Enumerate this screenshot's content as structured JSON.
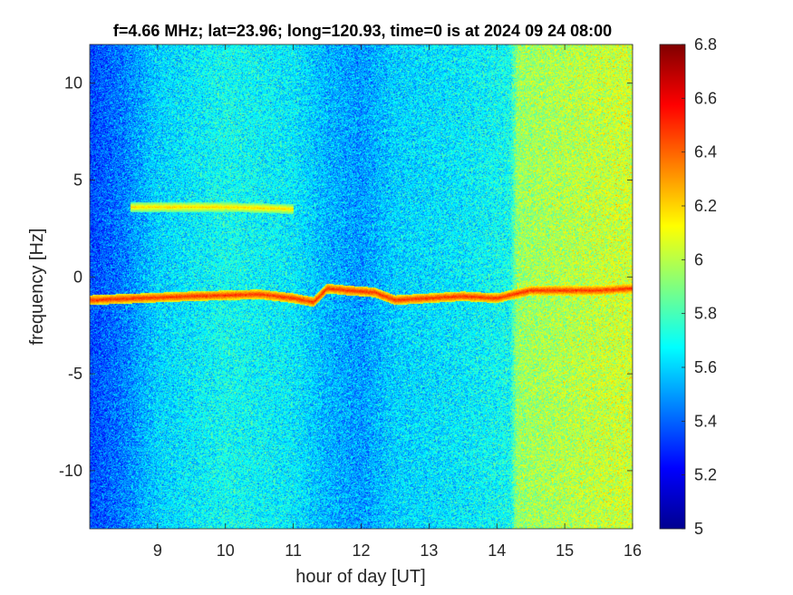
{
  "chart_data": {
    "type": "heatmap",
    "title": "f=4.66 MHz;  lat=23.96; long=120.93, time=0 is at 2024 09 24 08:00",
    "xlabel": "hour of day [UT]",
    "ylabel": "frequency [Hz]",
    "xlim": [
      8.0,
      16.0
    ],
    "ylim": [
      -13.0,
      12.0
    ],
    "xticks": [
      9,
      10,
      11,
      12,
      13,
      14,
      15,
      16
    ],
    "yticks": [
      -10,
      -5,
      0,
      5,
      10
    ],
    "colorbar": {
      "colormap": "jet",
      "range": [
        5.0,
        6.8
      ],
      "ticks": [
        "5",
        "5.2",
        "5.4",
        "5.6",
        "5.8",
        "6",
        "6.2",
        "6.4",
        "6.6",
        "6.8"
      ]
    },
    "background_level_by_hour": [
      {
        "hour": 8.0,
        "level": 5.35
      },
      {
        "hour": 8.5,
        "level": 5.45
      },
      {
        "hour": 9.0,
        "level": 5.6
      },
      {
        "hour": 10.0,
        "level": 5.7
      },
      {
        "hour": 11.0,
        "level": 5.65
      },
      {
        "hour": 11.5,
        "level": 5.55
      },
      {
        "hour": 12.0,
        "level": 5.5
      },
      {
        "hour": 12.5,
        "level": 5.6
      },
      {
        "hour": 13.5,
        "level": 5.65
      },
      {
        "hour": 14.2,
        "level": 5.7
      },
      {
        "hour": 14.3,
        "level": 5.95
      },
      {
        "hour": 16.0,
        "level": 6.05
      }
    ],
    "traces": [
      {
        "x": [
          8.0,
          9.5,
          10.5,
          11.0,
          11.3,
          11.5,
          11.8,
          12.2,
          12.5,
          13.5,
          14.0,
          14.5,
          15.5,
          16.0
        ],
        "y": [
          -1.2,
          -1.0,
          -0.9,
          -1.1,
          -1.3,
          -0.6,
          -0.7,
          -0.8,
          -1.2,
          -1.0,
          -1.1,
          -0.7,
          -0.7,
          -0.6
        ],
        "level": 6.5
      },
      {
        "x": [
          8.6,
          10.0,
          11.0
        ],
        "y": [
          3.6,
          3.6,
          3.5
        ],
        "level": 6.2
      }
    ]
  }
}
